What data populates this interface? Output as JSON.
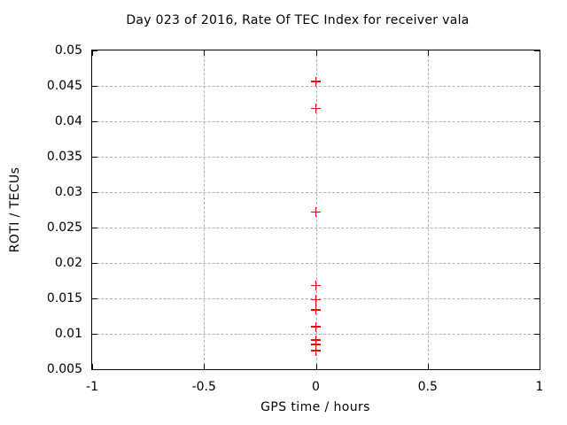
{
  "colors": {
    "background": "#ffffff",
    "axis": "#000000",
    "grid": "#b0b0b0",
    "marker": "#ff0000",
    "text": "#000000"
  },
  "chart_data": {
    "type": "scatter",
    "title": "Day 023 of 2016, Rate Of TEC Index for receiver vala",
    "xlabel": "GPS time / hours",
    "ylabel": "ROTI / TECUs",
    "xlim": [
      -1,
      1
    ],
    "ylim": [
      0.005,
      0.05
    ],
    "grid": true,
    "legend": "none",
    "marker": {
      "shape": "plus",
      "color": "#ff0000",
      "size": 11
    },
    "x_ticks": [
      {
        "value": -1,
        "label": "-1"
      },
      {
        "value": -0.5,
        "label": "-0.5"
      },
      {
        "value": 0,
        "label": "0"
      },
      {
        "value": 0.5,
        "label": "0.5"
      },
      {
        "value": 1,
        "label": "1"
      }
    ],
    "y_ticks": [
      {
        "value": 0.005,
        "label": "0.005"
      },
      {
        "value": 0.01,
        "label": "0.01"
      },
      {
        "value": 0.015,
        "label": "0.015"
      },
      {
        "value": 0.02,
        "label": "0.02"
      },
      {
        "value": 0.025,
        "label": "0.025"
      },
      {
        "value": 0.03,
        "label": "0.03"
      },
      {
        "value": 0.035,
        "label": "0.035"
      },
      {
        "value": 0.04,
        "label": "0.04"
      },
      {
        "value": 0.045,
        "label": "0.045"
      },
      {
        "value": 0.05,
        "label": "0.05"
      }
    ],
    "series": [
      {
        "name": "ROTI",
        "x": [
          0,
          0,
          0,
          0,
          0,
          0,
          0,
          0,
          0,
          0
        ],
        "y": [
          0.0456,
          0.0418,
          0.0272,
          0.0168,
          0.0148,
          0.0134,
          0.011,
          0.0091,
          0.0085,
          0.0076
        ]
      }
    ]
  }
}
